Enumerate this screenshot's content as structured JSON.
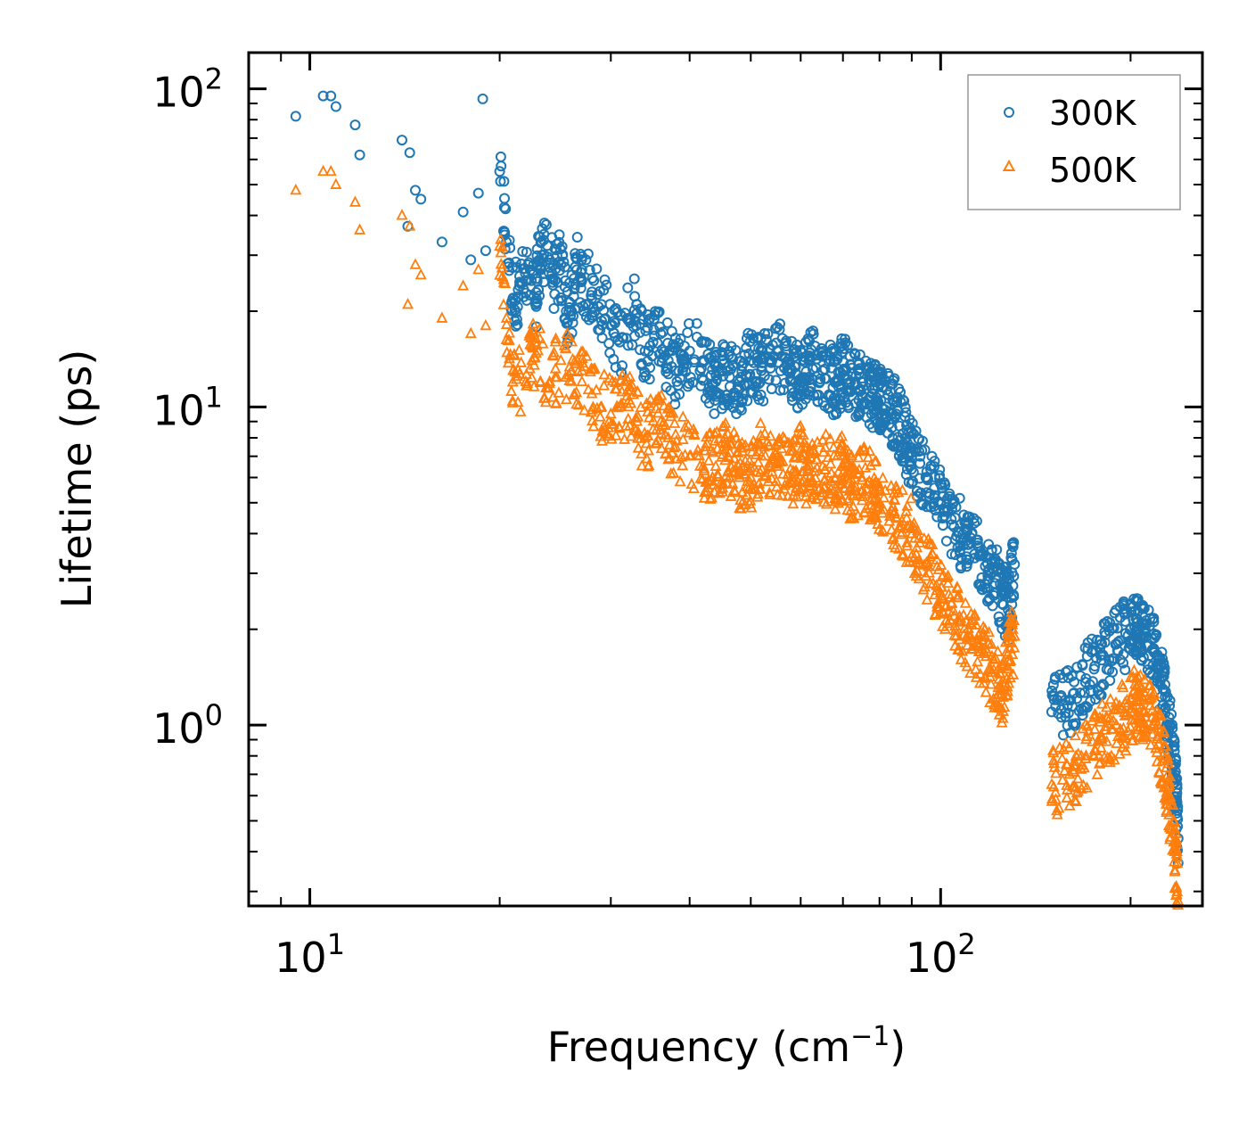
{
  "chart_data": {
    "type": "scatter",
    "title": "",
    "xlabel": "Frequency (cm",
    "xlabel_sup": "−1",
    "xlabel_end": ")",
    "ylabel": "Lifetime (ps)",
    "xscale": "log",
    "yscale": "log",
    "xlim": [
      8,
      260
    ],
    "ylim": [
      0.27,
      130
    ],
    "grid": false,
    "legend_position": "top-right",
    "x_ticks": [
      {
        "base": "10",
        "exp": "1",
        "value": 10
      },
      {
        "base": "10",
        "exp": "2",
        "value": 100
      }
    ],
    "y_ticks": [
      {
        "base": "10",
        "exp": "0",
        "value": 1
      },
      {
        "base": "10",
        "exp": "1",
        "value": 10
      },
      {
        "base": "10",
        "exp": "2",
        "value": 100
      }
    ],
    "series": [
      {
        "name": "300K",
        "color": "#1f77b4",
        "marker": "circle",
        "x": [
          9.5,
          10.5,
          10.8,
          11.0,
          11.8,
          12.0,
          14.0,
          14.4,
          14.7,
          15.0,
          14.3,
          16.2,
          17.5,
          18.0,
          18.5,
          19.0,
          18.8,
          20.0,
          20.5,
          21.0,
          21.5,
          22.0,
          22.8,
          23.0,
          23.3,
          24.0,
          24.5,
          25.0,
          25.5,
          26.0,
          26.5,
          27.0,
          28.0,
          29.0,
          30.0,
          31.0,
          32.0,
          33.0,
          34.0,
          35.0,
          36.0,
          37.0,
          38.0,
          39.0,
          40.0,
          42.0,
          44.0,
          46.0,
          48.0,
          50.0,
          52.0,
          55.0,
          58.0,
          60.0,
          62.0,
          65.0,
          68.0,
          70.0,
          72.0,
          75.0,
          78.0,
          80.0,
          82.0,
          85.0,
          88.0,
          90.0,
          95.0,
          100.0,
          105.0,
          110.0,
          115.0,
          120.0,
          125.0,
          128.0,
          131.0,
          150.0,
          160.0,
          170.0,
          180.0,
          190.0,
          200.0,
          205.0,
          210.0,
          218.0,
          225.0,
          230.0,
          235.0,
          238.0
        ],
        "y": [
          82,
          95,
          95,
          88,
          77,
          62,
          69,
          63,
          48,
          45,
          37,
          33,
          41,
          29,
          47,
          31,
          93,
          55,
          33,
          22,
          24,
          25,
          21,
          28,
          30,
          29,
          25,
          28,
          20,
          20,
          27,
          25,
          23,
          21,
          18,
          16,
          19,
          21,
          15,
          16,
          17,
          14,
          13,
          13,
          15,
          14,
          12,
          13,
          12,
          14,
          13,
          15,
          13,
          12,
          14,
          13,
          12,
          13,
          12,
          12,
          11,
          11,
          10,
          9.5,
          8,
          7,
          6,
          5,
          4.2,
          3.8,
          3.4,
          3.0,
          2.6,
          2.3,
          3.2,
          1.1,
          1.2,
          1.4,
          1.6,
          1.8,
          2.0,
          2.1,
          1.9,
          1.7,
          1.3,
          1.0,
          0.7,
          0.44
        ]
      },
      {
        "name": "500K",
        "color": "#ff7f0e",
        "marker": "triangle",
        "x": [
          9.5,
          10.5,
          10.8,
          11.0,
          11.8,
          12.0,
          14.0,
          14.4,
          14.7,
          15.0,
          14.3,
          16.2,
          17.5,
          18.0,
          18.5,
          19.0,
          20.0,
          20.5,
          21.0,
          22.0,
          22.5,
          23.0,
          24.0,
          25.0,
          26.0,
          27.0,
          28.0,
          29.0,
          30.0,
          31.0,
          32.0,
          33.0,
          34.0,
          35.0,
          36.0,
          37.0,
          38.0,
          40.0,
          42.0,
          44.0,
          46.0,
          48.0,
          50.0,
          52.0,
          55.0,
          58.0,
          60.0,
          62.0,
          65.0,
          68.0,
          70.0,
          72.0,
          75.0,
          78.0,
          80.0,
          85.0,
          90.0,
          95.0,
          100.0,
          105.0,
          110.0,
          115.0,
          120.0,
          125.0,
          128.0,
          131.0,
          150.0,
          160.0,
          170.0,
          180.0,
          190.0,
          200.0,
          205.0,
          210.0,
          218.0,
          225.0,
          230.0,
          235.0,
          238.0
        ],
        "y": [
          48,
          55,
          55,
          50,
          44,
          36,
          40,
          37,
          28,
          26,
          21,
          19,
          24,
          17,
          27,
          18,
          32,
          19,
          13,
          12,
          14,
          15,
          12,
          14,
          13,
          12,
          11,
          10,
          9.5,
          10,
          10,
          9,
          8,
          8.5,
          9,
          8,
          7.5,
          7,
          6.5,
          6.5,
          7,
          6,
          6,
          7,
          6.5,
          6,
          7,
          6,
          6.5,
          6,
          6.5,
          5.5,
          6,
          5.5,
          5,
          4.5,
          4,
          3.2,
          2.6,
          2.2,
          1.9,
          1.7,
          1.5,
          1.3,
          1.6,
          1.9,
          0.65,
          0.7,
          0.8,
          0.9,
          1.0,
          1.1,
          1.2,
          1.1,
          1.0,
          0.8,
          0.6,
          0.4,
          0.28
        ]
      }
    ]
  }
}
